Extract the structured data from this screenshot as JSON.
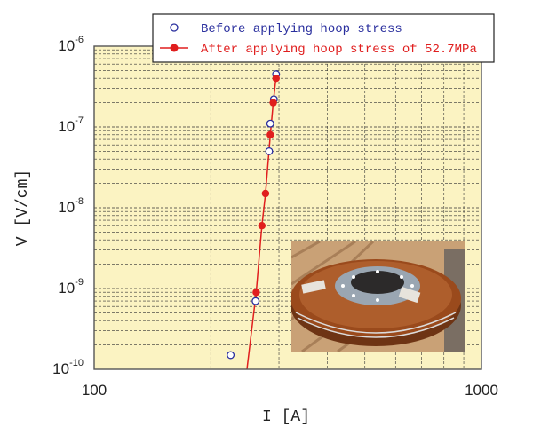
{
  "chart_data": {
    "type": "scatter",
    "title": "",
    "xlabel": "I [A]",
    "ylabel": "V [V/cm]",
    "x_scale": "log",
    "y_scale": "log",
    "xlim": [
      100,
      1000
    ],
    "ylim": [
      1e-10,
      1e-06
    ],
    "x_ticks": [
      "100",
      "1000"
    ],
    "y_ticks": [
      {
        "base": "10",
        "exp": "-10"
      },
      {
        "base": "10",
        "exp": "-9"
      },
      {
        "base": "10",
        "exp": "-8"
      },
      {
        "base": "10",
        "exp": "-7"
      },
      {
        "base": "10",
        "exp": "-6"
      }
    ],
    "grid": true,
    "legend_position": "top-right",
    "plot_background": "#fbf3c2",
    "series": [
      {
        "name": "Before applying hoop stress",
        "marker": "open-circle",
        "color": "#2a2f9e",
        "line": false,
        "x": [
          225,
          261,
          283,
          285,
          291,
          295
        ],
        "y": [
          1.5e-10,
          7e-10,
          5e-08,
          1.1e-07,
          2.2e-07,
          4.5e-07
        ]
      },
      {
        "name": "After applying hoop stress of 52.7MPa",
        "marker": "filled-circle",
        "color": "#e01e1e",
        "line": true,
        "x": [
          262,
          271,
          277,
          285,
          290,
          295
        ],
        "y": [
          9e-10,
          6e-09,
          1.5e-08,
          8e-08,
          2e-07,
          4e-07
        ]
      }
    ],
    "fit_line": {
      "color": "#e01e1e",
      "x": [
        248,
        262,
        271,
        277,
        285,
        290,
        295
      ],
      "y": [
        1e-10,
        9e-10,
        6e-09,
        1.5e-08,
        8e-08,
        2e-07,
        4.2e-07
      ]
    },
    "inset": {
      "kind": "photo",
      "subject": "coil-photo",
      "colors": {
        "wood": "#c9a176",
        "copper": "#9a4a1c",
        "copper_light": "#c0703a",
        "metal": "#9aa6b2",
        "dark": "#2c2a2a"
      }
    }
  }
}
